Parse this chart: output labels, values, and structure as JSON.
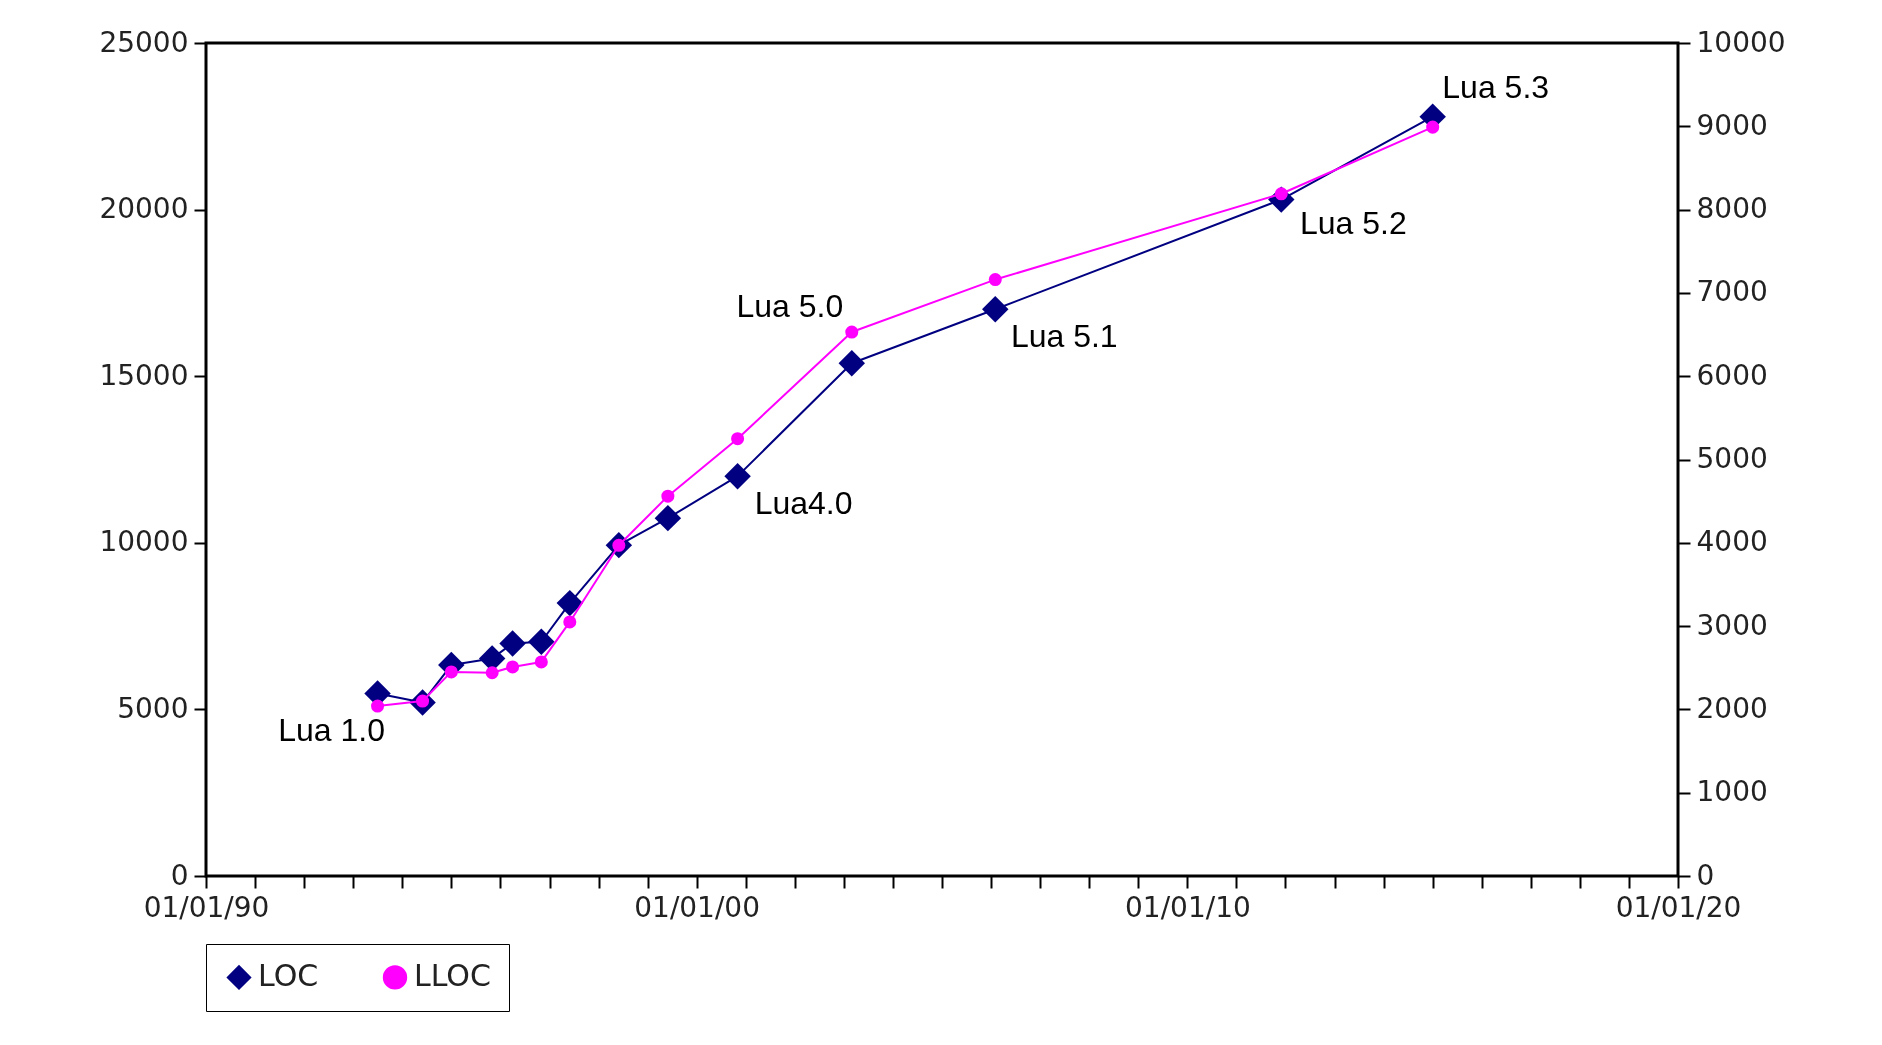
{
  "chart_data": {
    "type": "line",
    "x": [
      "1993-07",
      "1994-06",
      "1995-01",
      "1995-11",
      "1996-04",
      "1996-11",
      "1997-06",
      "1998-06",
      "1999-06",
      "2000-11",
      "2003-03",
      "2006-02",
      "2011-12",
      "2015-01"
    ],
    "series": [
      {
        "name": "LOC",
        "color": "#000080",
        "marker": "diamond",
        "values": [
          5480,
          5210,
          6330,
          6530,
          6980,
          7030,
          8190,
          9930,
          10740,
          12000,
          15390,
          17010,
          20300,
          22790
        ]
      },
      {
        "name": "LLOC",
        "color": "#ff00ff",
        "marker": "circle",
        "axis": "y2",
        "values": [
          2040,
          2100,
          2450,
          2440,
          2510,
          2570,
          3050,
          3970,
          4560,
          5250,
          6530,
          7160,
          8190,
          8990
        ]
      }
    ],
    "xlim": [
      "1990-01-01",
      "2020-01-01"
    ],
    "xticks": [
      {
        "value": "1990-01-01",
        "label": "01/01/90"
      },
      {
        "value": "1991-01-01",
        "label": null
      },
      {
        "value": "1992-01-01",
        "label": null
      },
      {
        "value": "1993-01-01",
        "label": null
      },
      {
        "value": "1994-01-01",
        "label": null
      },
      {
        "value": "1995-01-01",
        "label": null
      },
      {
        "value": "1996-01-01",
        "label": null
      },
      {
        "value": "1997-01-01",
        "label": null
      },
      {
        "value": "1998-01-01",
        "label": null
      },
      {
        "value": "1999-01-01",
        "label": null
      },
      {
        "value": "2000-01-01",
        "label": "01/01/00"
      },
      {
        "value": "2001-01-01",
        "label": null
      },
      {
        "value": "2002-01-01",
        "label": null
      },
      {
        "value": "2003-01-01",
        "label": null
      },
      {
        "value": "2004-01-01",
        "label": null
      },
      {
        "value": "2005-01-01",
        "label": null
      },
      {
        "value": "2006-01-01",
        "label": null
      },
      {
        "value": "2007-01-01",
        "label": null
      },
      {
        "value": "2008-01-01",
        "label": null
      },
      {
        "value": "2009-01-01",
        "label": null
      },
      {
        "value": "2010-01-01",
        "label": "01/01/10"
      },
      {
        "value": "2011-01-01",
        "label": null
      },
      {
        "value": "2012-01-01",
        "label": null
      },
      {
        "value": "2013-01-01",
        "label": null
      },
      {
        "value": "2014-01-01",
        "label": null
      },
      {
        "value": "2015-01-01",
        "label": null
      },
      {
        "value": "2016-01-01",
        "label": null
      },
      {
        "value": "2017-01-01",
        "label": null
      },
      {
        "value": "2018-01-01",
        "label": null
      },
      {
        "value": "2019-01-01",
        "label": null
      },
      {
        "value": "2020-01-01",
        "label": "01/01/20"
      }
    ],
    "ylim": [
      0,
      25000
    ],
    "yticks": [
      0,
      5000,
      10000,
      15000,
      20000,
      25000
    ],
    "y2lim": [
      0,
      10000
    ],
    "y2ticks": [
      0,
      1000,
      2000,
      3000,
      4000,
      5000,
      6000,
      7000,
      8000,
      9000,
      10000
    ],
    "annotations": [
      {
        "text": "Lua 1.0",
        "x": "1993-07",
        "y": 5480
      },
      {
        "text": "Lua4.0",
        "x": "2000-11",
        "y": 12000
      },
      {
        "text": "Lua 5.0",
        "x": "2003-03",
        "y": 15390
      },
      {
        "text": "Lua 5.1",
        "x": "2006-02",
        "y": 17010
      },
      {
        "text": "Lua 5.2",
        "x": "2011-12",
        "y": 20300
      },
      {
        "text": "Lua 5.3",
        "x": "2015-01",
        "y": 22790
      }
    ],
    "grid": false,
    "legend": "bottom",
    "line_style": "solid"
  }
}
